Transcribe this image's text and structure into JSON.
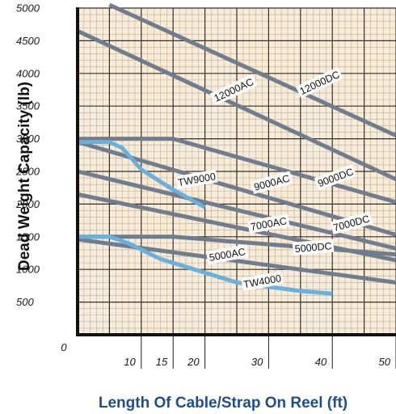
{
  "chart_data": {
    "type": "line",
    "xlabel": "Length Of Cable/Strap On Reel (ft)",
    "ylabel": "Dead Weight Capacity (lb)",
    "xlim": [
      0,
      50
    ],
    "ylim": [
      0,
      5000
    ],
    "grid": true,
    "x_ticks": [
      "0",
      "10",
      "15",
      "20",
      "30",
      "40",
      "50"
    ],
    "x_tick_values": [
      0,
      10,
      15,
      20,
      30,
      40,
      50
    ],
    "y_ticks": [
      "500",
      "1000",
      "1500",
      "2000",
      "2500",
      "3000",
      "3500",
      "4000",
      "4500",
      "5000"
    ],
    "y_tick_values": [
      500,
      1000,
      1500,
      2000,
      2500,
      3000,
      3500,
      4000,
      4500,
      5000
    ],
    "colors": {
      "grid_minor": "#c9ab84",
      "grid_major": "#3a2f22",
      "background": "#f5ecdc",
      "gray_series": "#6f7d8e",
      "blue_series": "#6ab0dc",
      "x_label": "#1f4e8c"
    },
    "series": [
      {
        "name": "12000DC",
        "color": "gray",
        "points": [
          [
            5,
            5050
          ],
          [
            50,
            3050
          ]
        ],
        "label_at": [
          [
            38,
            3860
          ],
          [
            -25
          ]
        ]
      },
      {
        "name": "12000AC",
        "color": "gray",
        "points": [
          [
            0,
            4650
          ],
          [
            50,
            2380
          ]
        ],
        "label_at": [
          [
            24.5,
            3750
          ],
          [
            -25
          ]
        ]
      },
      {
        "name": "9000DC",
        "color": "gray",
        "points": [
          [
            0,
            3000
          ],
          [
            15,
            3000
          ],
          [
            50,
            2030
          ]
        ],
        "label_at": [
          [
            40.5,
            2410
          ],
          [
            -20
          ]
        ]
      },
      {
        "name": "9000AC",
        "color": "gray",
        "points": [
          [
            0,
            2950
          ],
          [
            50,
            1530
          ]
        ],
        "label_at": [
          [
            30.5,
            2330
          ],
          [
            -15
          ]
        ]
      },
      {
        "name": "7000DC",
        "color": "gray",
        "points": [
          [
            0,
            2500
          ],
          [
            50,
            1320
          ]
        ],
        "label_at": [
          [
            43,
            1710
          ],
          [
            -15
          ]
        ]
      },
      {
        "name": "7000AC",
        "color": "gray",
        "points": [
          [
            0,
            2150
          ],
          [
            50,
            1140
          ]
        ],
        "label_at": [
          [
            30,
            1700
          ],
          [
            -10
          ]
        ]
      },
      {
        "name": "5000DC",
        "color": "gray",
        "points": [
          [
            0,
            1500
          ],
          [
            15,
            1500
          ],
          [
            50,
            1230
          ]
        ],
        "label_at": [
          [
            37,
            1340
          ],
          [
            -5
          ]
        ]
      },
      {
        "name": "5000AC",
        "color": "gray",
        "points": [
          [
            0,
            1460
          ],
          [
            50,
            800
          ]
        ],
        "label_at": [
          [
            23.5,
            1230
          ],
          [
            -10
          ]
        ]
      },
      {
        "name": "TW9000",
        "color": "blue",
        "points": [
          [
            0,
            2950
          ],
          [
            5,
            2950
          ],
          [
            7,
            2860
          ],
          [
            10,
            2530
          ],
          [
            15,
            2220
          ],
          [
            20,
            1950
          ]
        ],
        "label_at": [
          [
            18.7,
            2380
          ],
          [
            -10
          ]
        ]
      },
      {
        "name": "TW4000",
        "color": "blue",
        "points": [
          [
            0,
            1500
          ],
          [
            5,
            1500
          ],
          [
            8,
            1400
          ],
          [
            13,
            1160
          ],
          [
            20,
            950
          ],
          [
            25,
            800
          ],
          [
            35,
            670
          ],
          [
            40,
            630
          ]
        ],
        "label_at": [
          [
            29,
            820
          ],
          [
            -10
          ]
        ]
      }
    ]
  }
}
